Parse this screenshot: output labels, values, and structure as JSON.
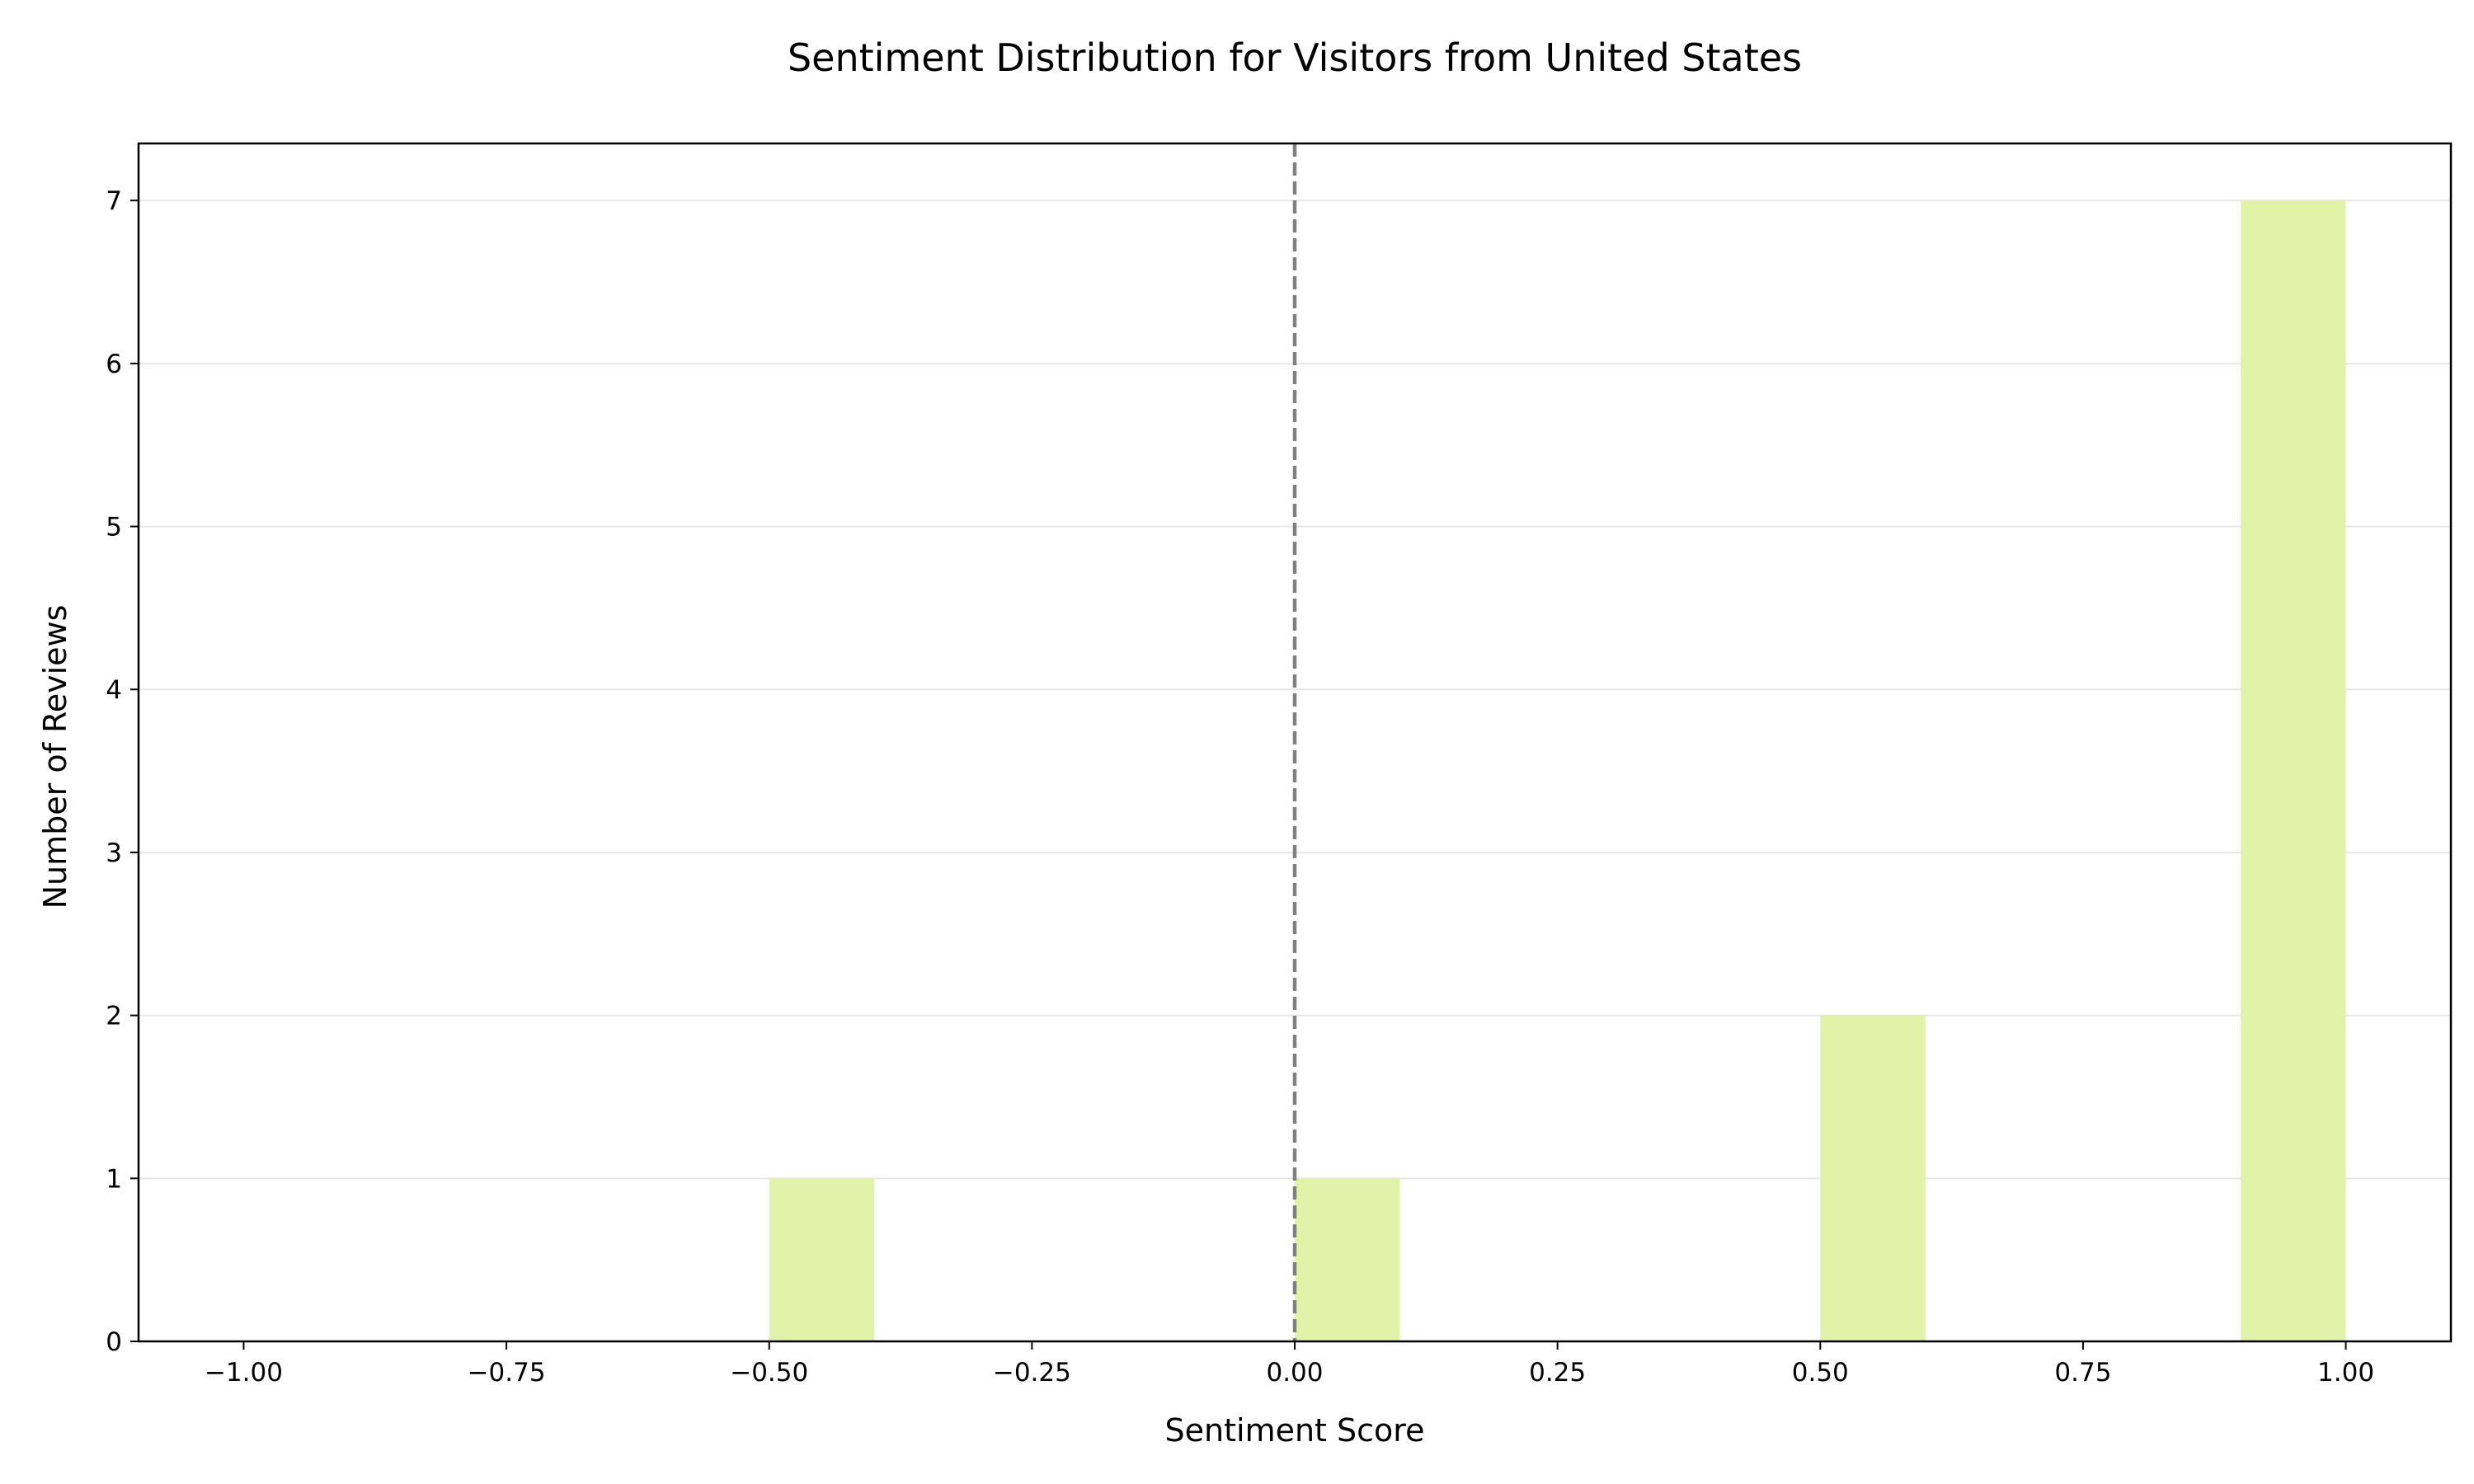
{
  "chart_data": {
    "type": "bar",
    "title": "Sentiment Distribution for Visitors from United States",
    "xlabel": "Sentiment Score",
    "ylabel": "Number of Reviews",
    "xlim": [
      -1.1,
      1.1
    ],
    "ylim": [
      0,
      7.35
    ],
    "bin_width": 0.1,
    "bins": [
      {
        "x_start": -0.5,
        "x_end": -0.4,
        "count": 1
      },
      {
        "x_start": 0.0,
        "x_end": 0.1,
        "count": 1
      },
      {
        "x_start": 0.5,
        "x_end": 0.6,
        "count": 2
      },
      {
        "x_start": 0.9,
        "x_end": 1.0,
        "count": 7
      }
    ],
    "xticks": [
      -1.0,
      -0.75,
      -0.5,
      -0.25,
      0.0,
      0.25,
      0.5,
      0.75,
      1.0
    ],
    "xtick_labels": [
      "−1.00",
      "−0.75",
      "−0.50",
      "−0.25",
      "0.00",
      "0.25",
      "0.50",
      "0.75",
      "1.00"
    ],
    "yticks": [
      0,
      1,
      2,
      3,
      4,
      5,
      6,
      7
    ],
    "ytick_labels": [
      "0",
      "1",
      "2",
      "3",
      "4",
      "5",
      "6",
      "7"
    ],
    "reference_line_x": 0.0,
    "grid": "horizontal",
    "legend": "none",
    "colors": {
      "bar": "#e1f2a9",
      "reference_line": "#808080",
      "grid": "#e6e6e6",
      "axes": "#000000"
    }
  }
}
